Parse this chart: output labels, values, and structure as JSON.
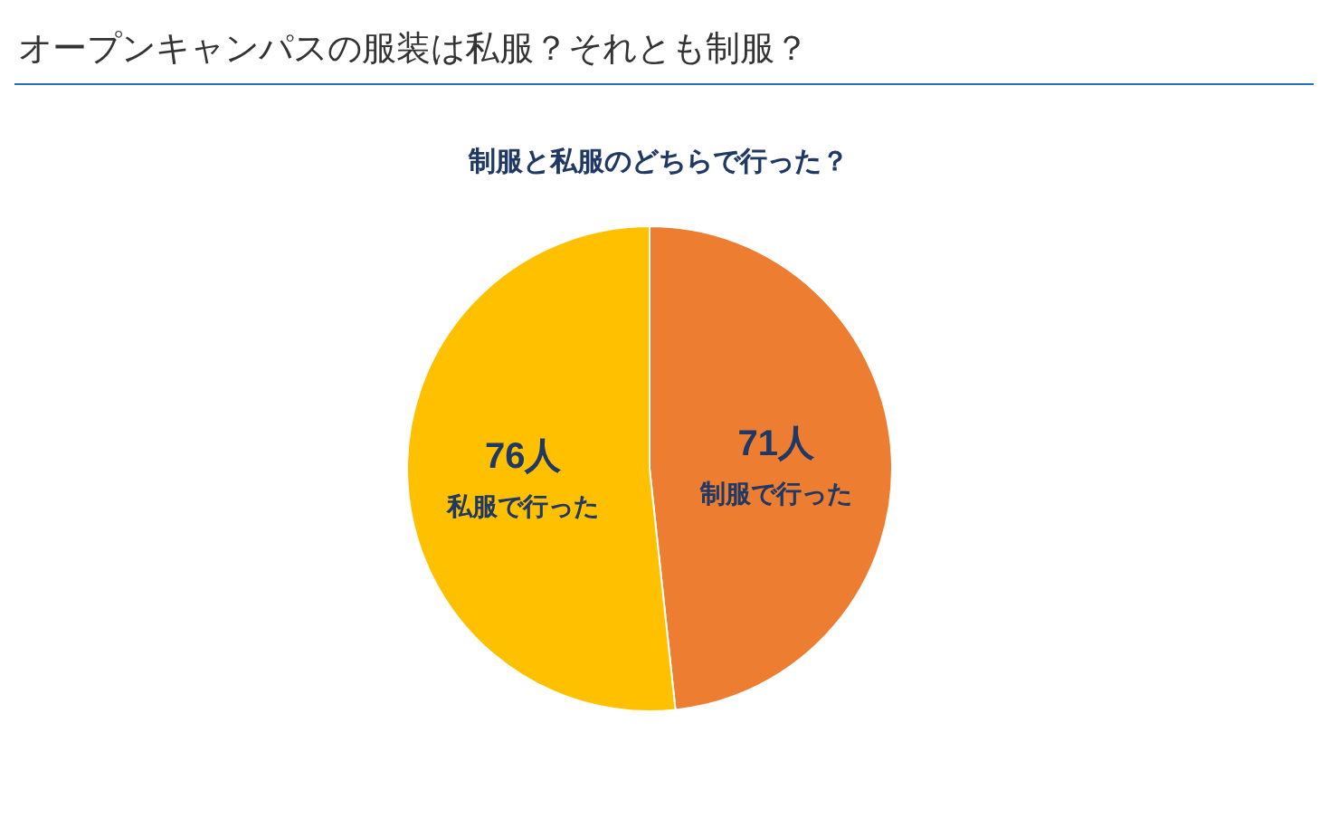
{
  "chart_data": {
    "type": "pie",
    "title": "オープンキャンパスの服装は私服？それとも制服？",
    "subtitle": "制服と私服のどちらで行った？",
    "categories": [
      "制服で行った",
      "私服で行った"
    ],
    "values": [
      71,
      76
    ],
    "colors": [
      "#ed7d31",
      "#ffc000"
    ],
    "value_labels": [
      "71人",
      "76人"
    ]
  }
}
